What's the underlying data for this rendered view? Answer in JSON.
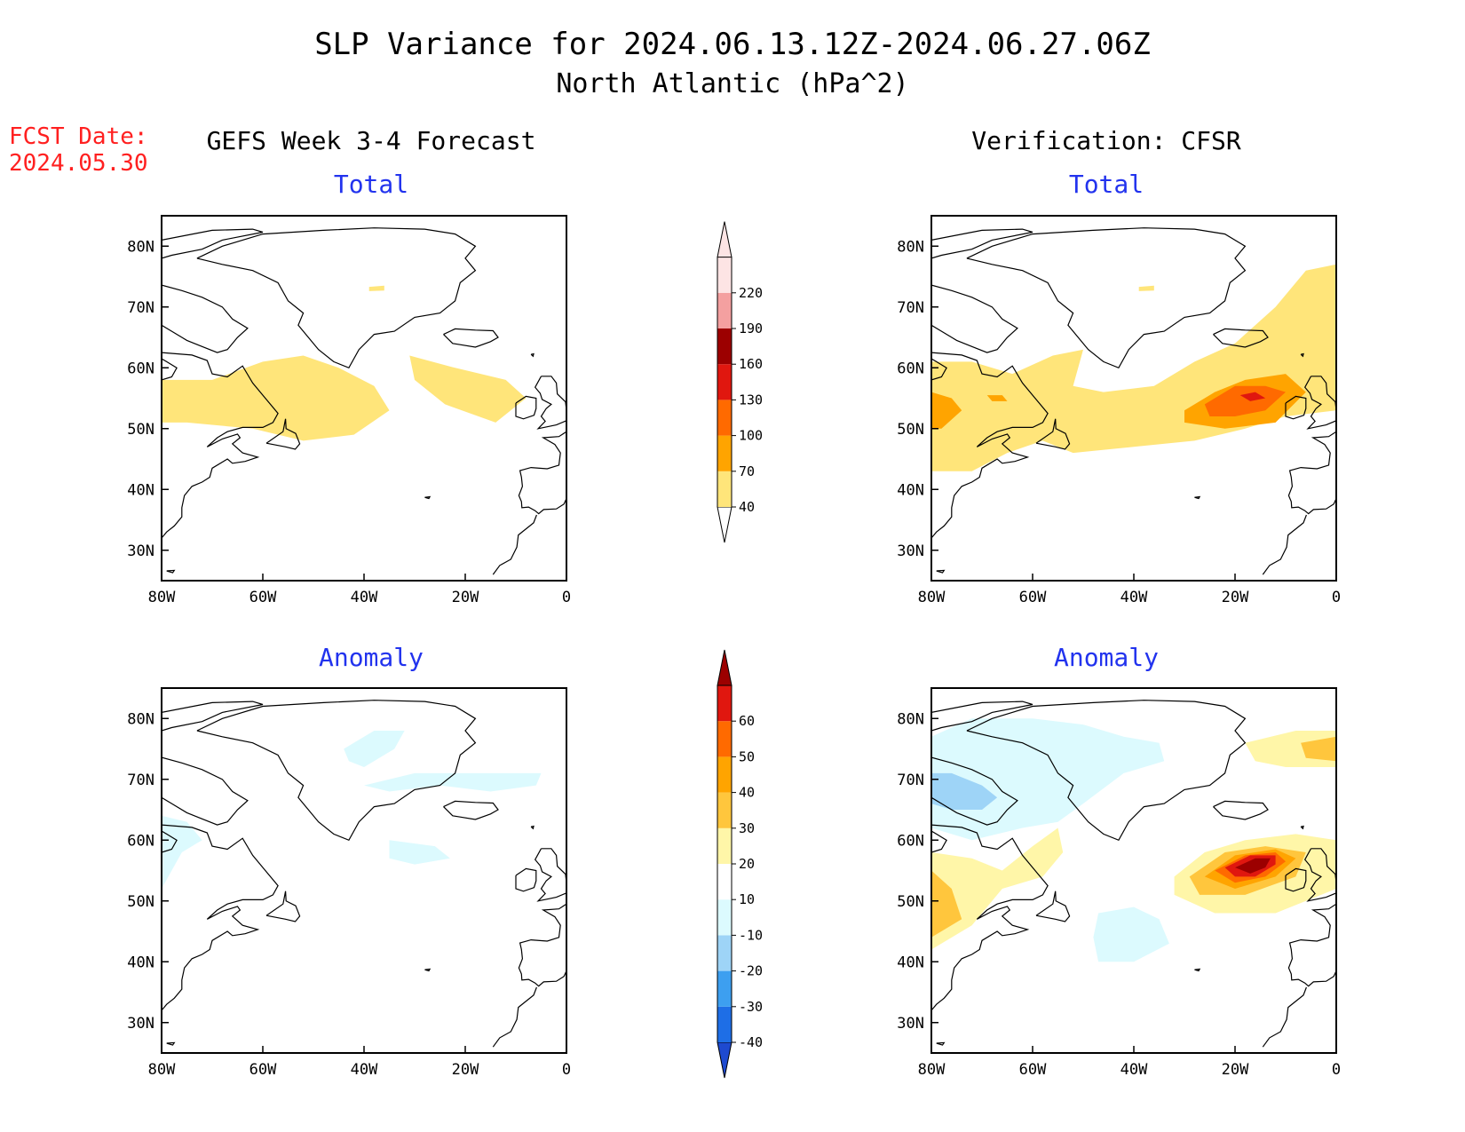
{
  "title": {
    "line1": "SLP Variance for 2024.06.13.12Z-2024.06.27.06Z",
    "line2": "North Atlantic (hPa^2)"
  },
  "fcst_date": {
    "label": "FCST Date:",
    "value": "2024.05.30"
  },
  "columns": {
    "left": "GEFS Week 3-4 Forecast",
    "right": "Verification: CFSR"
  },
  "colors": {
    "title_text": "#000000",
    "panel_title": "#2233ee",
    "fcst_text": "#ff2020",
    "coast": "#000000"
  },
  "chart_data": [
    {
      "type": "heatmap",
      "id": "gefs-total",
      "title": "Total",
      "lon_range": [
        -80,
        0
      ],
      "lat_range": [
        25,
        85
      ],
      "x_ticks": [
        "80W",
        "60W",
        "40W",
        "20W",
        "0"
      ],
      "y_ticks": [
        "30N",
        "40N",
        "50N",
        "60N",
        "70N",
        "80N"
      ],
      "regions": [
        {
          "level": "40-70",
          "color": "#ffe57a",
          "approx_lonlat": [
            [
              -80,
              58
            ],
            [
              -70,
              58
            ],
            [
              -60,
              61
            ],
            [
              -52,
              62
            ],
            [
              -45,
              60
            ],
            [
              -38,
              57
            ],
            [
              -35,
              53
            ],
            [
              -42,
              49
            ],
            [
              -52,
              48
            ],
            [
              -62,
              50
            ],
            [
              -75,
              51
            ],
            [
              -80,
              51
            ]
          ]
        },
        {
          "level": "40-70",
          "color": "#ffe57a",
          "approx_lonlat": [
            [
              -31,
              62
            ],
            [
              -22,
              60
            ],
            [
              -12,
              58
            ],
            [
              -8,
              55
            ],
            [
              -14,
              51
            ],
            [
              -24,
              54
            ],
            [
              -30,
              58
            ]
          ]
        },
        {
          "level": "40-70",
          "color": "#ffe57a",
          "approx_lonlat": [
            [
              -39,
              73.3
            ],
            [
              -36,
              73.5
            ],
            [
              -36,
              72.7
            ],
            [
              -39,
              72.6
            ]
          ]
        }
      ]
    },
    {
      "type": "heatmap",
      "id": "cfsr-total",
      "title": "Total",
      "lon_range": [
        -80,
        0
      ],
      "lat_range": [
        25,
        85
      ],
      "x_ticks": [
        "80W",
        "60W",
        "40W",
        "20W",
        "0"
      ],
      "y_ticks": [
        "30N",
        "40N",
        "50N",
        "60N",
        "70N",
        "80N"
      ],
      "regions": [
        {
          "level": "40-70",
          "color": "#ffe57a",
          "approx_lonlat": [
            [
              -80,
              61
            ],
            [
              -72,
              61
            ],
            [
              -64,
              59
            ],
            [
              -56,
              62
            ],
            [
              -50,
              63
            ],
            [
              -52,
              57
            ],
            [
              -46,
              56
            ],
            [
              -36,
              57
            ],
            [
              -28,
              61
            ],
            [
              -20,
              64
            ],
            [
              -12,
              70
            ],
            [
              -6,
              76
            ],
            [
              0,
              77
            ],
            [
              0,
              53
            ],
            [
              -10,
              52
            ],
            [
              -18,
              50
            ],
            [
              -28,
              48
            ],
            [
              -40,
              47
            ],
            [
              -52,
              46
            ],
            [
              -58,
              48
            ],
            [
              -65,
              46
            ],
            [
              -72,
              43
            ],
            [
              -80,
              43
            ]
          ]
        },
        {
          "level": "70-100",
          "color": "#ffa400",
          "approx_lonlat": [
            [
              -30,
              53
            ],
            [
              -24,
              56
            ],
            [
              -18,
              58
            ],
            [
              -10,
              59
            ],
            [
              -6,
              56
            ],
            [
              -12,
              51
            ],
            [
              -22,
              50
            ],
            [
              -30,
              51
            ]
          ]
        },
        {
          "level": "100-130",
          "color": "#ff6a00",
          "approx_lonlat": [
            [
              -26,
              54
            ],
            [
              -20,
              57
            ],
            [
              -14,
              57
            ],
            [
              -10,
              56
            ],
            [
              -14,
              53
            ],
            [
              -20,
              52
            ],
            [
              -25,
              52
            ]
          ]
        },
        {
          "level": "130-160",
          "color": "#e0170f",
          "approx_lonlat": [
            [
              -19,
              55.5
            ],
            [
              -16,
              56
            ],
            [
              -14,
              55
            ],
            [
              -17,
              54.5
            ]
          ]
        },
        {
          "level": "70-100",
          "color": "#ffa400",
          "approx_lonlat": [
            [
              -80,
              56
            ],
            [
              -76,
              55
            ],
            [
              -74,
              53
            ],
            [
              -78,
              50
            ],
            [
              -80,
              50
            ]
          ]
        },
        {
          "level": "70-100",
          "color": "#ffa400",
          "approx_lonlat": [
            [
              -69,
              55.5
            ],
            [
              -66,
              55.5
            ],
            [
              -65,
              54.5
            ],
            [
              -68,
              54.5
            ]
          ]
        },
        {
          "level": "40-70",
          "color": "#ffe57a",
          "approx_lonlat": [
            [
              -39,
              73.3
            ],
            [
              -36,
              73.5
            ],
            [
              -36,
              72.7
            ],
            [
              -39,
              72.6
            ]
          ]
        }
      ]
    },
    {
      "type": "heatmap",
      "id": "gefs-anomaly",
      "title": "Anomaly",
      "lon_range": [
        -80,
        0
      ],
      "lat_range": [
        25,
        85
      ],
      "x_ticks": [
        "80W",
        "60W",
        "40W",
        "20W",
        "0"
      ],
      "y_ticks": [
        "30N",
        "40N",
        "50N",
        "60N",
        "70N",
        "80N"
      ],
      "regions": [
        {
          "level": "-20--10",
          "color": "#dcfafe",
          "approx_lonlat": [
            [
              -44,
              75
            ],
            [
              -38,
              78
            ],
            [
              -32,
              78
            ],
            [
              -34,
              75
            ],
            [
              -40,
              72
            ],
            [
              -43,
              73
            ]
          ]
        },
        {
          "level": "-20--10",
          "color": "#dcfafe",
          "approx_lonlat": [
            [
              -40,
              69
            ],
            [
              -30,
              71
            ],
            [
              -15,
              71
            ],
            [
              -5,
              71
            ],
            [
              -6,
              69
            ],
            [
              -15,
              68
            ],
            [
              -25,
              69
            ],
            [
              -35,
              68
            ]
          ]
        },
        {
          "level": "-20--10",
          "color": "#dcfafe",
          "approx_lonlat": [
            [
              -80,
              64
            ],
            [
              -75,
              63
            ],
            [
              -72,
              60
            ],
            [
              -76,
              58
            ],
            [
              -80,
              52
            ]
          ]
        },
        {
          "level": "-20--10",
          "color": "#dcfafe",
          "approx_lonlat": [
            [
              -35,
              60
            ],
            [
              -26,
              59
            ],
            [
              -23,
              57
            ],
            [
              -30,
              56
            ],
            [
              -35,
              57
            ]
          ]
        }
      ]
    },
    {
      "type": "heatmap",
      "id": "cfsr-anomaly",
      "title": "Anomaly",
      "lon_range": [
        -80,
        0
      ],
      "lat_range": [
        25,
        85
      ],
      "x_ticks": [
        "80W",
        "60W",
        "40W",
        "20W",
        "0"
      ],
      "y_ticks": [
        "30N",
        "40N",
        "50N",
        "60N",
        "70N",
        "80N"
      ],
      "regions": [
        {
          "level": "-20--10",
          "color": "#dcfafe",
          "approx_lonlat": [
            [
              -80,
              77
            ],
            [
              -72,
              80
            ],
            [
              -60,
              80
            ],
            [
              -50,
              79
            ],
            [
              -42,
              77
            ],
            [
              -35,
              76
            ],
            [
              -34,
              73
            ],
            [
              -42,
              71
            ],
            [
              -50,
              66
            ],
            [
              -55,
              63
            ],
            [
              -62,
              62
            ],
            [
              -72,
              60
            ],
            [
              -80,
              62
            ]
          ]
        },
        {
          "level": "-30--20",
          "color": "#9ed4f7",
          "approx_lonlat": [
            [
              -80,
              71
            ],
            [
              -76,
              71
            ],
            [
              -70,
              69
            ],
            [
              -67,
              67
            ],
            [
              -70,
              65
            ],
            [
              -76,
              65
            ],
            [
              -80,
              66
            ]
          ]
        },
        {
          "level": "-20--10",
          "color": "#dcfafe",
          "approx_lonlat": [
            [
              -47,
              48
            ],
            [
              -40,
              49
            ],
            [
              -35,
              47
            ],
            [
              -33,
              43
            ],
            [
              -40,
              40
            ],
            [
              -47,
              40
            ],
            [
              -48,
              44
            ]
          ]
        },
        {
          "level": "10-20",
          "color": "#fff6a8",
          "approx_lonlat": [
            [
              -80,
              58
            ],
            [
              -72,
              57
            ],
            [
              -66,
              55
            ],
            [
              -60,
              59
            ],
            [
              -55,
              62
            ],
            [
              -54,
              58
            ],
            [
              -58,
              54
            ],
            [
              -66,
              52
            ],
            [
              -72,
              46
            ],
            [
              -80,
              42
            ]
          ]
        },
        {
          "level": "20-30",
          "color": "#ffc63d",
          "approx_lonlat": [
            [
              -80,
              55
            ],
            [
              -76,
              52
            ],
            [
              -74,
              47
            ],
            [
              -80,
              44
            ]
          ]
        },
        {
          "level": "10-20",
          "color": "#fff6a8",
          "approx_lonlat": [
            [
              -32,
              54
            ],
            [
              -26,
              58
            ],
            [
              -18,
              60
            ],
            [
              -8,
              61
            ],
            [
              0,
              60
            ],
            [
              0,
              52
            ],
            [
              -12,
              48
            ],
            [
              -24,
              48
            ],
            [
              -32,
              51
            ]
          ]
        },
        {
          "level": "20-30",
          "color": "#ffc63d",
          "approx_lonlat": [
            [
              -29,
              54
            ],
            [
              -22,
              58
            ],
            [
              -14,
              59
            ],
            [
              -6,
              58
            ],
            [
              -8,
              54
            ],
            [
              -18,
              51
            ],
            [
              -27,
              51
            ]
          ]
        },
        {
          "level": "30-40",
          "color": "#ffa400",
          "approx_lonlat": [
            [
              -26,
              54
            ],
            [
              -20,
              57.5
            ],
            [
              -12,
              58.5
            ],
            [
              -8,
              57
            ],
            [
              -12,
              54
            ],
            [
              -20,
              52
            ]
          ]
        },
        {
          "level": "40-50",
          "color": "#ff6a00",
          "approx_lonlat": [
            [
              -24,
              55
            ],
            [
              -18,
              57.5
            ],
            [
              -12,
              58
            ],
            [
              -10,
              56.5
            ],
            [
              -14,
              54
            ],
            [
              -20,
              53
            ]
          ]
        },
        {
          "level": "50-60",
          "color": "#e0170f",
          "approx_lonlat": [
            [
              -22,
              55.5
            ],
            [
              -17,
              57.5
            ],
            [
              -12,
              57.5
            ],
            [
              -12,
              56
            ],
            [
              -16,
              54
            ],
            [
              -20,
              54
            ]
          ]
        },
        {
          "level": ">60",
          "color": "#9c0000",
          "approx_lonlat": [
            [
              -20,
              55.5
            ],
            [
              -16,
              57
            ],
            [
              -13,
              57
            ],
            [
              -14,
              55.5
            ],
            [
              -17,
              54.5
            ]
          ]
        },
        {
          "level": "10-20",
          "color": "#fff6a8",
          "approx_lonlat": [
            [
              -18,
              76
            ],
            [
              -8,
              78
            ],
            [
              0,
              78
            ],
            [
              0,
              72
            ],
            [
              -10,
              72
            ],
            [
              -16,
              73
            ]
          ]
        },
        {
          "level": "20-30",
          "color": "#ffc63d",
          "approx_lonlat": [
            [
              -7,
              76
            ],
            [
              0,
              77
            ],
            [
              0,
              73
            ],
            [
              -6,
              73.5
            ]
          ]
        }
      ]
    }
  ],
  "colorbars": [
    {
      "id": "total-colorbar",
      "labels": [
        "40",
        "70",
        "100",
        "130",
        "160",
        "190",
        "220"
      ],
      "colors": [
        "#ffe57a",
        "#ffa400",
        "#ff6a00",
        "#e0170f",
        "#9c0000",
        "#f4a0a0",
        "#fde4e4"
      ],
      "extend_low": "#ffffff",
      "extend_high": "#fde4e4"
    },
    {
      "id": "anomaly-colorbar",
      "labels": [
        "-40",
        "-30",
        "-20",
        "-10",
        "10",
        "20",
        "30",
        "40",
        "50",
        "60"
      ],
      "colors": [
        "#1e6ee6",
        "#3d9ff0",
        "#9ed4f7",
        "#dcfafe",
        "#ffffff",
        "#fff6a8",
        "#ffc63d",
        "#ffa400",
        "#ff6a00",
        "#e0170f"
      ],
      "extend_low": "#1e4ad0",
      "extend_high": "#9c0000"
    }
  ]
}
